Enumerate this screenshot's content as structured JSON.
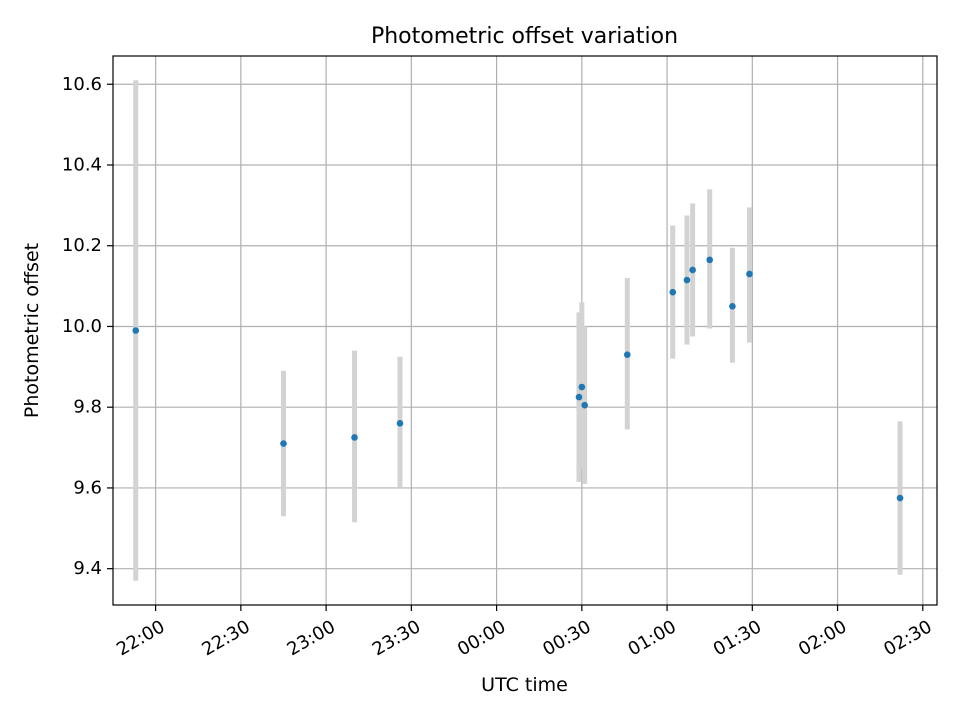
{
  "chart_data": {
    "type": "scatter",
    "title": "Photometric offset variation",
    "xlabel": "UTC time",
    "ylabel": "Photometric offset",
    "x_axis_kind": "time",
    "xlim": [
      "21:45",
      "02:35"
    ],
    "ylim": [
      9.31,
      10.67
    ],
    "grid": true,
    "x_ticks": [
      "22:00",
      "22:30",
      "23:00",
      "23:30",
      "00:00",
      "00:30",
      "01:00",
      "01:30",
      "02:00",
      "02:30"
    ],
    "y_ticks": [
      9.4,
      9.6,
      9.8,
      10.0,
      10.2,
      10.4,
      10.6
    ],
    "y_tick_labels": [
      "9.4",
      "9.6",
      "9.8",
      "10.0",
      "10.2",
      "10.4",
      "10.6"
    ],
    "marker_color": "#1f77b4",
    "errorbar_color": "#d3d3d3",
    "points": [
      {
        "time": "21:53",
        "y": 9.99,
        "ymin": 9.37,
        "ymax": 10.61
      },
      {
        "time": "22:45",
        "y": 9.71,
        "ymin": 9.53,
        "ymax": 9.89
      },
      {
        "time": "23:10",
        "y": 9.725,
        "ymin": 9.515,
        "ymax": 9.94
      },
      {
        "time": "23:26",
        "y": 9.76,
        "ymin": 9.6,
        "ymax": 9.925
      },
      {
        "time": "00:29",
        "y": 9.825,
        "ymin": 9.615,
        "ymax": 10.035
      },
      {
        "time": "00:30",
        "y": 9.85,
        "ymin": 9.65,
        "ymax": 10.06
      },
      {
        "time": "00:31",
        "y": 9.805,
        "ymin": 9.61,
        "ymax": 10.0
      },
      {
        "time": "00:46",
        "y": 9.93,
        "ymin": 9.745,
        "ymax": 10.12
      },
      {
        "time": "01:02",
        "y": 10.085,
        "ymin": 9.92,
        "ymax": 10.25
      },
      {
        "time": "01:07",
        "y": 10.115,
        "ymin": 9.955,
        "ymax": 10.275
      },
      {
        "time": "01:09",
        "y": 10.14,
        "ymin": 9.975,
        "ymax": 10.305
      },
      {
        "time": "01:15",
        "y": 10.165,
        "ymin": 9.995,
        "ymax": 10.34
      },
      {
        "time": "01:23",
        "y": 10.05,
        "ymin": 9.91,
        "ymax": 10.195
      },
      {
        "time": "01:29",
        "y": 10.13,
        "ymin": 9.96,
        "ymax": 10.295
      },
      {
        "time": "02:22",
        "y": 9.575,
        "ymin": 9.385,
        "ymax": 9.765
      }
    ]
  }
}
